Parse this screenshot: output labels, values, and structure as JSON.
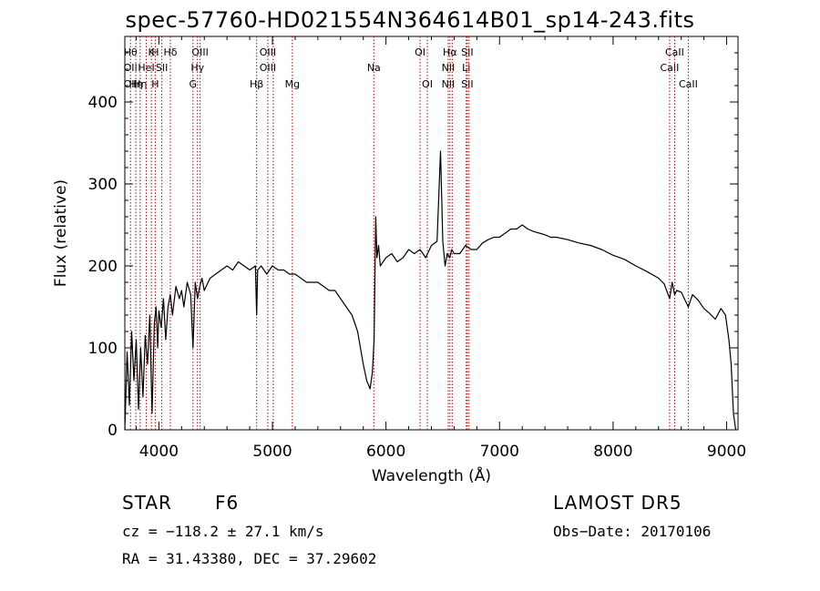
{
  "chart_data": {
    "type": "line",
    "title": "spec-57760-HD021554N364614B01_sp14-243.fits",
    "xlabel": "Wavelength (Å)",
    "ylabel": "Flux (relative)",
    "xlim": [
      3700,
      9100
    ],
    "ylim": [
      0,
      480
    ],
    "xticks": [
      4000,
      5000,
      6000,
      7000,
      8000,
      9000
    ],
    "yticks": [
      0,
      100,
      200,
      300,
      400
    ],
    "grid": false,
    "series": [
      {
        "x": [
          3700,
          3720,
          3740,
          3760,
          3780,
          3800,
          3820,
          3840,
          3860,
          3880,
          3900,
          3920,
          3940,
          3960,
          3975,
          3990,
          4000,
          4020,
          4040,
          4060,
          4080,
          4100,
          4120,
          4150,
          4180,
          4200,
          4220,
          4250,
          4280,
          4300,
          4320,
          4340,
          4360,
          4380,
          4400,
          4450,
          4500,
          4550,
          4600,
          4650,
          4700,
          4750,
          4800,
          4850,
          4861,
          4870,
          4900,
          4950,
          5000,
          5050,
          5100,
          5150,
          5200,
          5250,
          5300,
          5350,
          5400,
          5450,
          5500,
          5550,
          5600,
          5650,
          5700,
          5750,
          5800,
          5830,
          5860,
          5880,
          5895,
          5910,
          5920,
          5935,
          5950,
          6000,
          6050,
          6100,
          6150,
          6200,
          6250,
          6300,
          6350,
          6400,
          6450,
          6480,
          6500,
          6520,
          6540,
          6562,
          6580,
          6600,
          6650,
          6700,
          6750,
          6800,
          6850,
          6900,
          6950,
          7000,
          7050,
          7100,
          7150,
          7200,
          7250,
          7300,
          7350,
          7400,
          7450,
          7500,
          7600,
          7700,
          7800,
          7900,
          8000,
          8100,
          8200,
          8300,
          8400,
          8450,
          8498,
          8520,
          8542,
          8560,
          8600,
          8662,
          8700,
          8750,
          8800,
          8850,
          8900,
          8950,
          8990,
          9020,
          9040,
          9060,
          9080
        ],
        "y": [
          0,
          95,
          30,
          120,
          60,
          110,
          25,
          100,
          40,
          115,
          80,
          140,
          20,
          130,
          150,
          100,
          145,
          125,
          160,
          110,
          150,
          165,
          140,
          175,
          160,
          170,
          150,
          180,
          165,
          100,
          180,
          160,
          175,
          185,
          170,
          185,
          190,
          195,
          200,
          195,
          205,
          200,
          195,
          200,
          140,
          195,
          200,
          190,
          200,
          195,
          195,
          190,
          190,
          185,
          180,
          180,
          180,
          175,
          170,
          170,
          160,
          150,
          140,
          120,
          80,
          60,
          50,
          70,
          110,
          260,
          210,
          225,
          200,
          210,
          215,
          205,
          210,
          220,
          215,
          220,
          210,
          225,
          230,
          340,
          230,
          200,
          215,
          210,
          220,
          215,
          215,
          225,
          220,
          220,
          228,
          232,
          235,
          235,
          240,
          245,
          245,
          250,
          245,
          242,
          240,
          238,
          235,
          235,
          232,
          228,
          225,
          220,
          213,
          208,
          200,
          193,
          185,
          178,
          160,
          180,
          165,
          170,
          168,
          150,
          165,
          158,
          148,
          142,
          135,
          148,
          140,
          110,
          80,
          20,
          0
        ]
      }
    ],
    "lines": [
      {
        "x": 3750,
        "labels": [
          "Hθ",
          "OII",
          "OII"
        ]
      },
      {
        "x": 3797,
        "labels": [
          "",
          "",
          "Hη"
        ]
      },
      {
        "x": 3835,
        "labels": [
          "",
          "",
          "Hη"
        ]
      },
      {
        "x": 3889,
        "labels": [
          "",
          "HeI",
          ""
        ]
      },
      {
        "x": 3934,
        "labels": [
          "K",
          "",
          ""
        ]
      },
      {
        "x": 3968,
        "labels": [
          "H",
          "",
          "H"
        ]
      },
      {
        "x": 4026,
        "labels": [
          "",
          "SII",
          ""
        ]
      },
      {
        "x": 4101,
        "labels": [
          "Hδ",
          "",
          ""
        ]
      },
      {
        "x": 4300,
        "labels": [
          "",
          "",
          "G"
        ]
      },
      {
        "x": 4340,
        "labels": [
          "",
          "Hγ",
          ""
        ]
      },
      {
        "x": 4363,
        "labels": [
          "OIII",
          "",
          ""
        ]
      },
      {
        "x": 4861,
        "labels": [
          "",
          "",
          "Hβ"
        ]
      },
      {
        "x": 4959,
        "labels": [
          "OIII",
          "OIII",
          ""
        ]
      },
      {
        "x": 5007,
        "labels": [
          "",
          "",
          ""
        ]
      },
      {
        "x": 5175,
        "labels": [
          "",
          "",
          "Mg"
        ]
      },
      {
        "x": 5893,
        "labels": [
          "",
          "Na",
          ""
        ]
      },
      {
        "x": 6300,
        "labels": [
          "OI",
          "",
          ""
        ]
      },
      {
        "x": 6364,
        "labels": [
          "",
          "",
          "OI"
        ]
      },
      {
        "x": 6548,
        "labels": [
          "",
          "NII",
          "NII"
        ]
      },
      {
        "x": 6563,
        "labels": [
          "Hα",
          "",
          ""
        ]
      },
      {
        "x": 6583,
        "labels": [
          "",
          "",
          ""
        ]
      },
      {
        "x": 6707,
        "labels": [
          "",
          "Li",
          ""
        ]
      },
      {
        "x": 6716,
        "labels": [
          "SII",
          "",
          "SII"
        ]
      },
      {
        "x": 6731,
        "labels": [
          "",
          "",
          ""
        ]
      },
      {
        "x": 8498,
        "labels": [
          "",
          "CaII",
          ""
        ]
      },
      {
        "x": 8542,
        "labels": [
          "CaII",
          "",
          ""
        ]
      },
      {
        "x": 8662,
        "labels": [
          "",
          "",
          "CaII"
        ]
      }
    ]
  },
  "info": {
    "class": "STAR",
    "subclass": "F6",
    "survey": "LAMOST DR5",
    "cz": "cz = −118.2 ± 27.1 km/s",
    "obsdate": "Obs−Date: 20170106",
    "radec": "RA =  31.43380, DEC =  37.29602"
  }
}
